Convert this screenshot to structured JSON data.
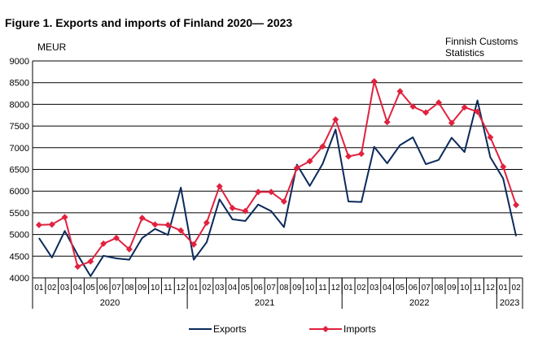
{
  "chart_data": {
    "type": "line",
    "title": "Figure 1. Exports and imports of Finland 2020— 2023",
    "ylabel": "MEUR",
    "source": "Finnish Customs Statistics",
    "ylim": [
      4000,
      9000
    ],
    "yticks": [
      4000,
      4500,
      5000,
      5500,
      6000,
      6500,
      7000,
      7500,
      8000,
      8500,
      9000
    ],
    "grid": true,
    "legend_position": "bottom",
    "x": [
      "01",
      "02",
      "03",
      "04",
      "05",
      "06",
      "07",
      "08",
      "09",
      "10",
      "11",
      "12",
      "01",
      "02",
      "03",
      "04",
      "05",
      "06",
      "07",
      "08",
      "09",
      "10",
      "11",
      "12",
      "01",
      "02",
      "03",
      "04",
      "05",
      "06",
      "07",
      "08",
      "09",
      "10",
      "11",
      "12",
      "01",
      "02"
    ],
    "years": [
      {
        "label": "2020",
        "months": 12
      },
      {
        "label": "2021",
        "months": 12
      },
      {
        "label": "2022",
        "months": 12
      },
      {
        "label": "2023",
        "months": 2
      }
    ],
    "series": [
      {
        "name": "Exports",
        "color": "#0b2a5b",
        "marker": "none",
        "values": [
          4920,
          4470,
          5080,
          4530,
          4040,
          4510,
          4450,
          4420,
          4920,
          5130,
          4990,
          6080,
          4420,
          4820,
          5810,
          5350,
          5310,
          5690,
          5540,
          5170,
          6610,
          6120,
          6630,
          7420,
          5760,
          5750,
          7020,
          6640,
          7060,
          7240,
          6620,
          6720,
          7230,
          6900,
          8090,
          6780,
          6290,
          4960
        ]
      },
      {
        "name": "Imports",
        "color": "#e0223f",
        "marker": "diamond",
        "values": [
          5220,
          5230,
          5400,
          4260,
          4380,
          4790,
          4920,
          4660,
          5380,
          5230,
          5220,
          5090,
          4770,
          5270,
          6110,
          5610,
          5540,
          5980,
          5980,
          5760,
          6530,
          6690,
          7030,
          7650,
          6800,
          6860,
          8530,
          7590,
          8300,
          7950,
          7810,
          8040,
          7570,
          7930,
          7830,
          7240,
          6560,
          5680
        ]
      }
    ]
  }
}
